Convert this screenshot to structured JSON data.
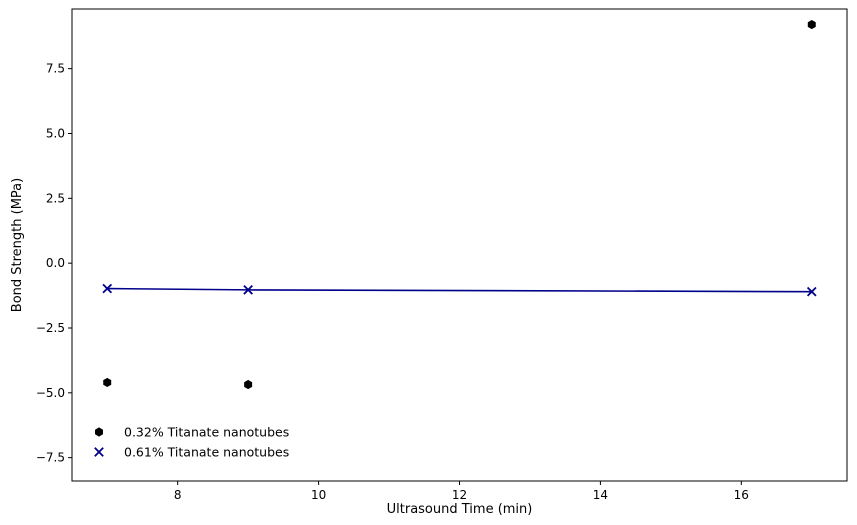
{
  "chart_data": {
    "type": "scatter",
    "title": "",
    "xlabel": "Ultrasound Time (min)",
    "ylabel": "Bond Strength (MPa)",
    "xlim": [
      6.5,
      17.5
    ],
    "ylim": [
      -8.4,
      9.8
    ],
    "xticks": [
      8,
      10,
      12,
      14,
      16
    ],
    "xtick_labels": [
      "8",
      "10",
      "12",
      "14",
      "16"
    ],
    "yticks": [
      -7.5,
      -5.0,
      -2.5,
      0.0,
      2.5,
      5.0,
      7.5
    ],
    "ytick_labels": [
      "−7.5",
      "−5.0",
      "−2.5",
      "0.0",
      "2.5",
      "5.0",
      "7.5"
    ],
    "grid": false,
    "legend_position": "lower-left",
    "series": [
      {
        "name": "0.32% Titanate nanotubes",
        "marker": "hexagon",
        "color": "#000000",
        "line": false,
        "x": [
          7,
          9,
          17
        ],
        "y": [
          -4.6,
          -4.68,
          9.2
        ]
      },
      {
        "name": "0.61% Titanate nanotubes",
        "marker": "x",
        "color": "#00008b",
        "line": true,
        "x": [
          7,
          9,
          17
        ],
        "y": [
          -0.98,
          -1.03,
          -1.1
        ]
      }
    ]
  }
}
